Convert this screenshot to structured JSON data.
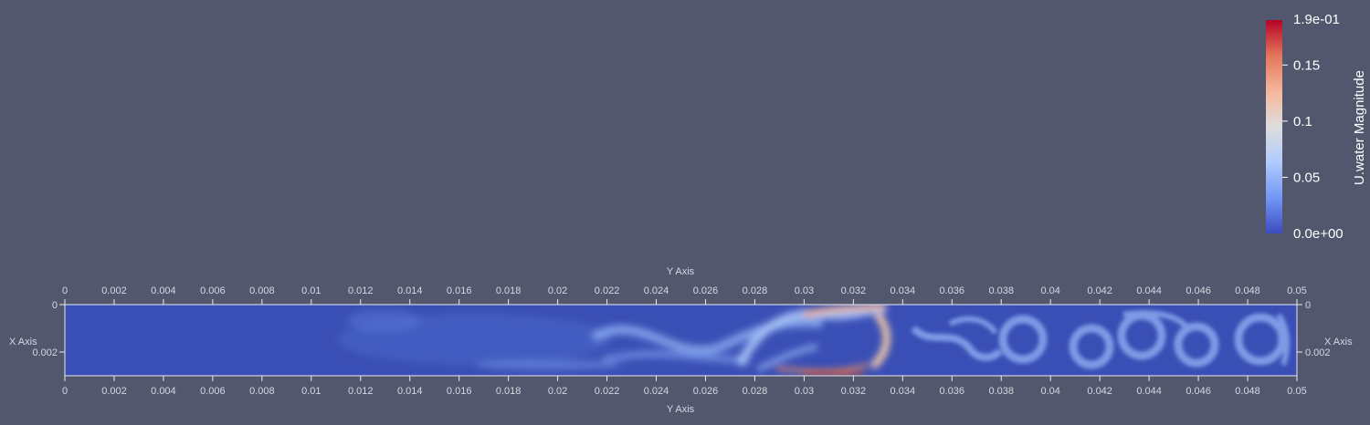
{
  "colorbar": {
    "title": "U.water Magnitude",
    "max_label": "1.9e-01",
    "min_label": "0.0e+00",
    "range": [
      0,
      0.19
    ],
    "ticks": [
      {
        "value": 0.15,
        "label": "0.15"
      },
      {
        "value": 0.1,
        "label": "0.1"
      },
      {
        "value": 0.05,
        "label": "0.05"
      }
    ],
    "colormap": [
      "#3b4cc0",
      "#7396f5",
      "#b0cbfc",
      "#dddddd",
      "#f6b69b",
      "#e4765a",
      "#b40426"
    ]
  },
  "axes": {
    "top_title": "Y Axis",
    "bottom_title": "Y Axis",
    "left_title": "X Axis",
    "right_title": "X Axis",
    "h_range": [
      0,
      0.05
    ],
    "v_range": [
      0,
      0.003
    ],
    "h_ticks": [
      "0",
      "0.002",
      "0.004",
      "0.006",
      "0.008",
      "0.01",
      "0.012",
      "0.014",
      "0.016",
      "0.018",
      "0.02",
      "0.022",
      "0.024",
      "0.026",
      "0.028",
      "0.03",
      "0.032",
      "0.034",
      "0.036",
      "0.038",
      "0.04",
      "0.042",
      "0.044",
      "0.046",
      "0.048",
      "0.05"
    ],
    "v_ticks": [
      "0",
      "0.002"
    ]
  },
  "colors": {
    "background": "#52576e",
    "field_base": "#3a4fb5",
    "axis_line": "#e8e8ee"
  }
}
